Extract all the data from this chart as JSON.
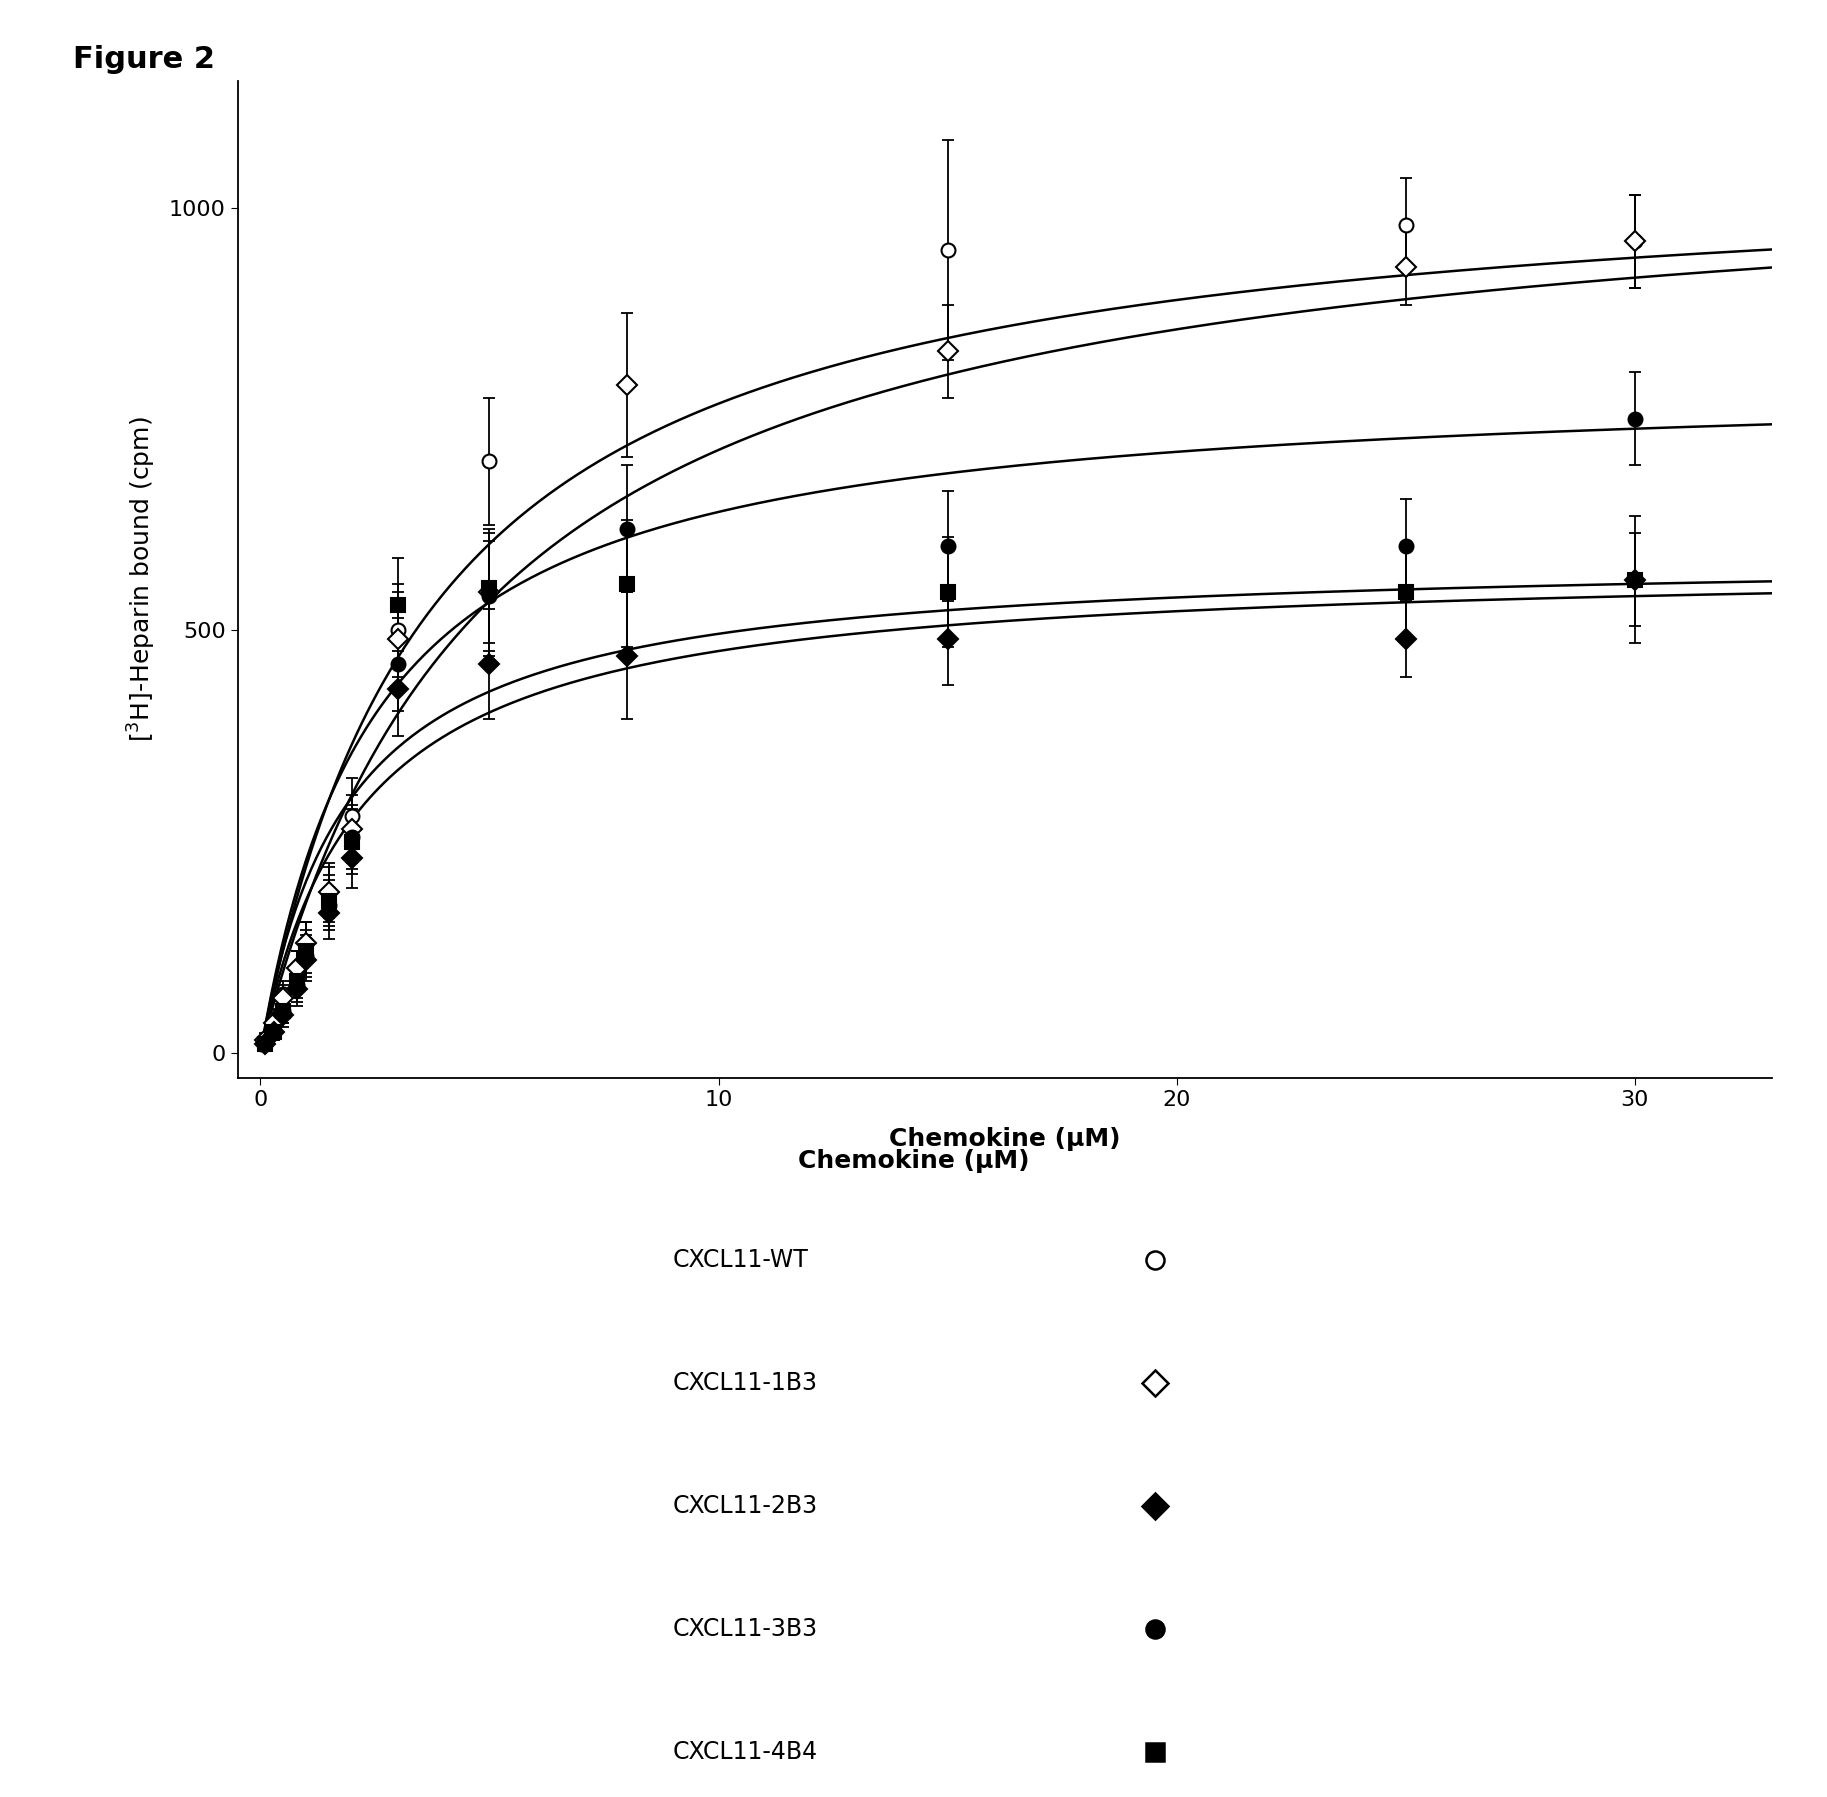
{
  "figure_label": "Figure 2",
  "ylabel": "[$^{3}$H]-Heparin bound (cpm)",
  "xlabel": "Chemokine (μM)",
  "xlim": [
    -0.5,
    33
  ],
  "ylim": [
    -30,
    1150
  ],
  "xticks": [
    0,
    10,
    20,
    30
  ],
  "yticks": [
    0,
    500,
    1000
  ],
  "series": {
    "CXCL11-WT": {
      "x": [
        0.1,
        0.3,
        0.5,
        0.8,
        1.0,
        1.5,
        2.0,
        3.0,
        5.0,
        15.0,
        25.0,
        30.0
      ],
      "y": [
        10,
        40,
        70,
        100,
        130,
        190,
        280,
        500,
        700,
        950,
        980,
        960
      ],
      "yerr": [
        8,
        12,
        15,
        20,
        25,
        35,
        45,
        55,
        75,
        130,
        55,
        55
      ],
      "Bmax": 1060,
      "Kd": 3.8,
      "marker": "o",
      "fillstyle": "none"
    },
    "CXCL11-1B3": {
      "x": [
        0.1,
        0.3,
        0.5,
        0.8,
        1.0,
        1.5,
        2.0,
        3.0,
        5.0,
        8.0,
        15.0,
        25.0,
        30.0
      ],
      "y": [
        15,
        35,
        65,
        100,
        130,
        190,
        265,
        490,
        545,
        790,
        830,
        930,
        960
      ],
      "yerr": [
        8,
        12,
        15,
        20,
        25,
        30,
        40,
        55,
        75,
        85,
        55,
        45,
        55
      ],
      "Bmax": 1070,
      "Kd": 5.0,
      "marker": "D",
      "fillstyle": "none"
    },
    "CXCL11-2B3": {
      "x": [
        0.1,
        0.3,
        0.5,
        0.8,
        1.0,
        1.5,
        2.0,
        3.0,
        5.0,
        8.0,
        15.0,
        25.0,
        30.0
      ],
      "y": [
        10,
        25,
        45,
        75,
        110,
        165,
        230,
        430,
        460,
        470,
        490,
        490,
        560
      ],
      "yerr": [
        8,
        10,
        15,
        20,
        25,
        30,
        35,
        55,
        65,
        75,
        55,
        45,
        55
      ],
      "Bmax": 580,
      "Kd": 2.2,
      "marker": "D",
      "fillstyle": "full"
    },
    "CXCL11-3B3": {
      "x": [
        0.1,
        0.3,
        0.5,
        0.8,
        1.0,
        1.5,
        2.0,
        3.0,
        5.0,
        8.0,
        15.0,
        25.0,
        30.0
      ],
      "y": [
        10,
        25,
        50,
        80,
        115,
        175,
        255,
        460,
        540,
        620,
        600,
        600,
        750
      ],
      "yerr": [
        8,
        10,
        15,
        20,
        25,
        30,
        38,
        55,
        65,
        75,
        65,
        55,
        55
      ],
      "Bmax": 800,
      "Kd": 2.5,
      "marker": "o",
      "fillstyle": "full"
    },
    "CXCL11-4B4": {
      "x": [
        0.1,
        0.3,
        0.5,
        0.8,
        1.0,
        1.5,
        2.0,
        3.0,
        5.0,
        8.0,
        15.0,
        25.0,
        30.0
      ],
      "y": [
        10,
        25,
        50,
        85,
        120,
        180,
        250,
        530,
        550,
        555,
        545,
        545,
        560
      ],
      "yerr": [
        8,
        10,
        15,
        20,
        25,
        30,
        38,
        55,
        65,
        75,
        65,
        55,
        75
      ],
      "Bmax": 590,
      "Kd": 1.9,
      "marker": "s",
      "fillstyle": "full"
    }
  },
  "legend_entries": [
    {
      "label": "CXCL11-WT",
      "marker": "o",
      "fillstyle": "none"
    },
    {
      "label": "CXCL11-1B3",
      "marker": "D",
      "fillstyle": "none"
    },
    {
      "label": "CXCL11-2B3",
      "marker": "D",
      "fillstyle": "full"
    },
    {
      "label": "CXCL11-3B3",
      "marker": "o",
      "fillstyle": "full"
    },
    {
      "label": "CXCL11-4B4",
      "marker": "s",
      "fillstyle": "full"
    }
  ],
  "background_color": "#ffffff",
  "fig_label_fontsize": 22,
  "axis_label_fontsize": 18,
  "tick_fontsize": 16,
  "legend_fontsize": 17
}
